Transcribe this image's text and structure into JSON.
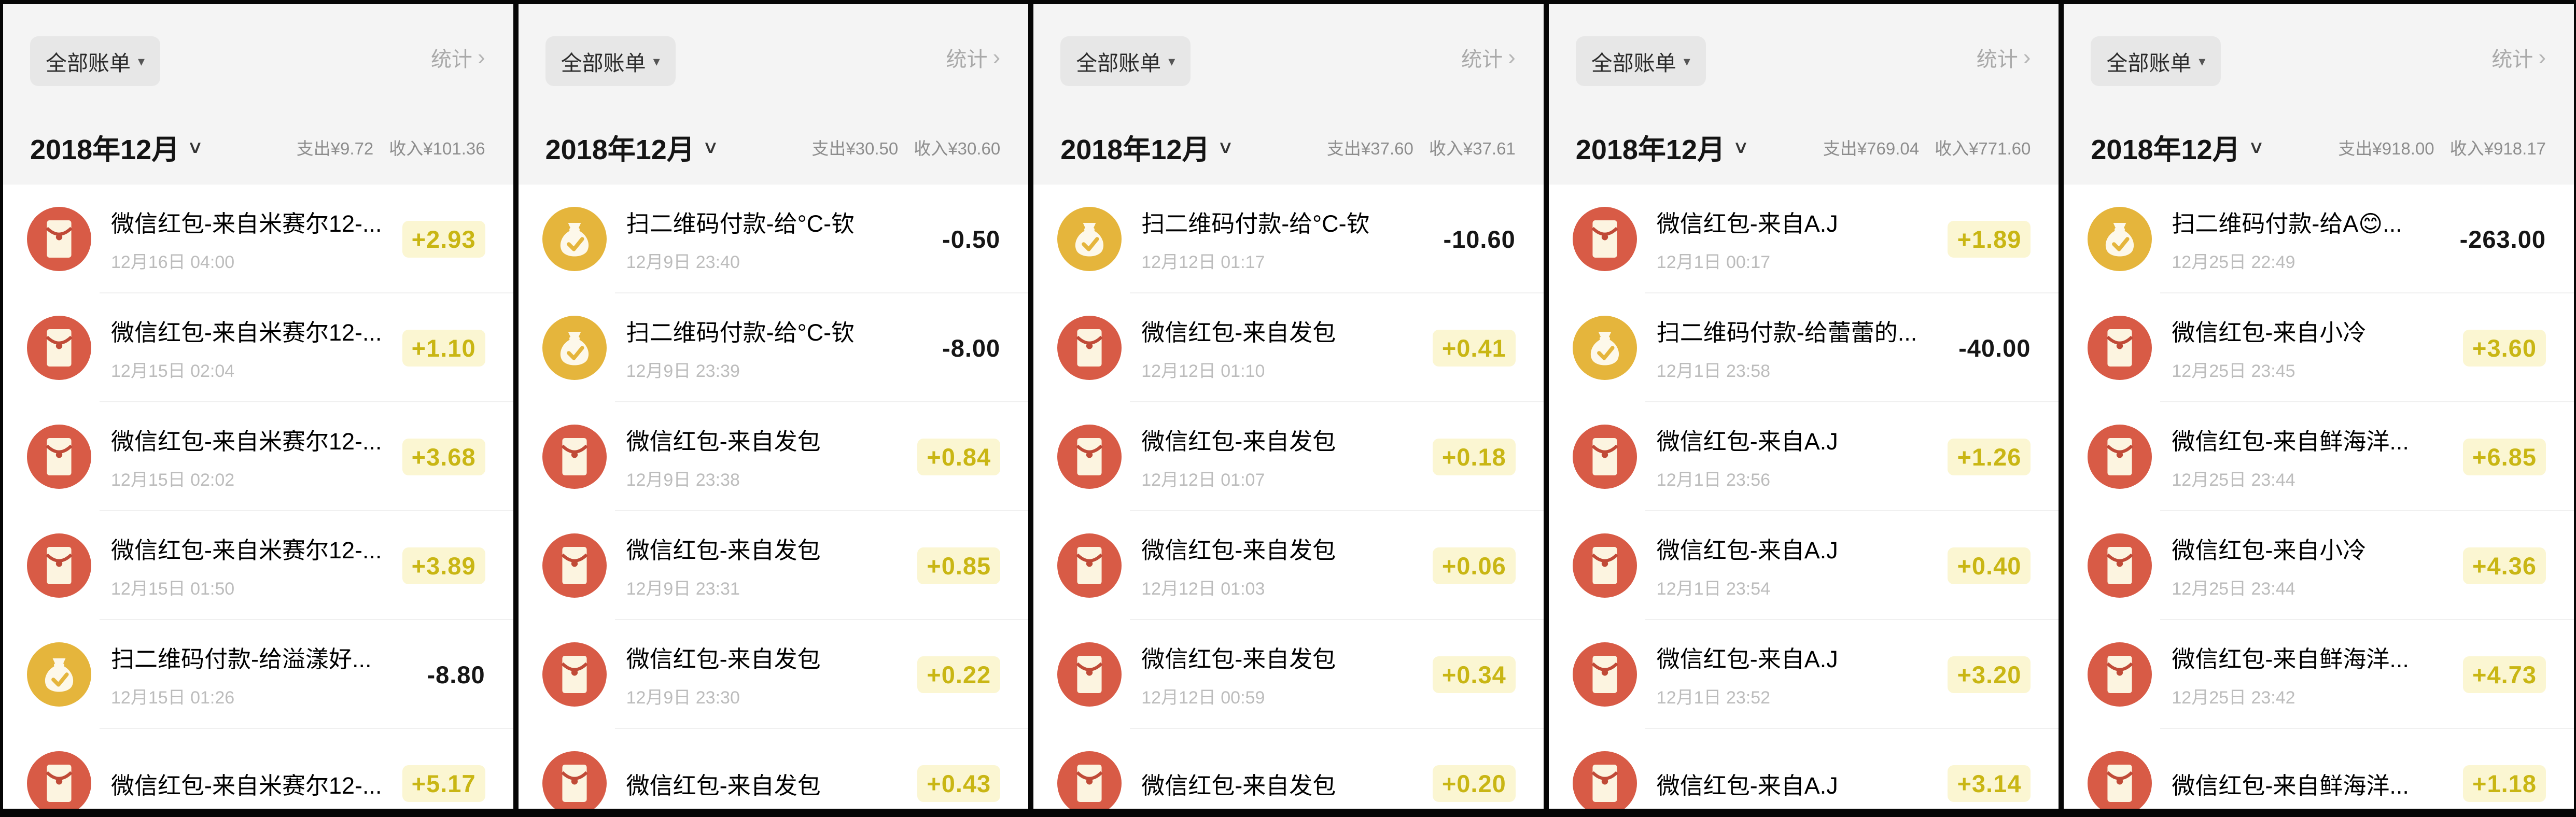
{
  "colors": {
    "income_text": "#c9b614",
    "income_highlight": "#fbf6d2",
    "expense_text": "#161616",
    "red_packet_circle": "#d85b46",
    "money_bag_circle": "#e5b53c",
    "header_bg": "#f4f4f4"
  },
  "header": {
    "filter_label": "全部账单",
    "filter_caret": "▾",
    "stats_label": "统计",
    "stats_chevron": "›",
    "month_caret": "∨"
  },
  "panels": [
    {
      "month": "2018年12月",
      "expense_total": "支出¥9.72",
      "income_total": "收入¥101.36",
      "rows": [
        {
          "icon": "red-packet",
          "title": "微信红包-来自米赛尔12-...",
          "date": "12月16日 04:00",
          "amount": "+2.93",
          "type": "income"
        },
        {
          "icon": "red-packet",
          "title": "微信红包-来自米赛尔12-...",
          "date": "12月15日 02:04",
          "amount": "+1.10",
          "type": "income"
        },
        {
          "icon": "red-packet",
          "title": "微信红包-来自米赛尔12-...",
          "date": "12月15日 02:02",
          "amount": "+3.68",
          "type": "income"
        },
        {
          "icon": "red-packet",
          "title": "微信红包-来自米赛尔12-...",
          "date": "12月15日 01:50",
          "amount": "+3.89",
          "type": "income"
        },
        {
          "icon": "money-bag",
          "title": "扫二维码付款-给溢漾好...",
          "date": "12月15日 01:26",
          "amount": "-8.80",
          "type": "expense"
        },
        {
          "icon": "red-packet",
          "title": "微信红包-来自米赛尔12-...",
          "date": "",
          "amount": "+5.17",
          "type": "income"
        }
      ]
    },
    {
      "month": "2018年12月",
      "expense_total": "支出¥30.50",
      "income_total": "收入¥30.60",
      "rows": [
        {
          "icon": "money-bag",
          "title": "扫二维码付款-给°C-钦",
          "date": "12月9日 23:40",
          "amount": "-0.50",
          "type": "expense"
        },
        {
          "icon": "money-bag",
          "title": "扫二维码付款-给°C-钦",
          "date": "12月9日 23:39",
          "amount": "-8.00",
          "type": "expense"
        },
        {
          "icon": "red-packet",
          "title": "微信红包-来自发包",
          "date": "12月9日 23:38",
          "amount": "+0.84",
          "type": "income"
        },
        {
          "icon": "red-packet",
          "title": "微信红包-来自发包",
          "date": "12月9日 23:31",
          "amount": "+0.85",
          "type": "income"
        },
        {
          "icon": "red-packet",
          "title": "微信红包-来自发包",
          "date": "12月9日 23:30",
          "amount": "+0.22",
          "type": "income"
        },
        {
          "icon": "red-packet",
          "title": "微信红包-来自发包",
          "date": "",
          "amount": "+0.43",
          "type": "income"
        }
      ]
    },
    {
      "month": "2018年12月",
      "expense_total": "支出¥37.60",
      "income_total": "收入¥37.61",
      "rows": [
        {
          "icon": "money-bag",
          "title": "扫二维码付款-给°C-钦",
          "date": "12月12日 01:17",
          "amount": "-10.60",
          "type": "expense"
        },
        {
          "icon": "red-packet",
          "title": "微信红包-来自发包",
          "date": "12月12日 01:10",
          "amount": "+0.41",
          "type": "income"
        },
        {
          "icon": "red-packet",
          "title": "微信红包-来自发包",
          "date": "12月12日 01:07",
          "amount": "+0.18",
          "type": "income"
        },
        {
          "icon": "red-packet",
          "title": "微信红包-来自发包",
          "date": "12月12日 01:03",
          "amount": "+0.06",
          "type": "income"
        },
        {
          "icon": "red-packet",
          "title": "微信红包-来自发包",
          "date": "12月12日 00:59",
          "amount": "+0.34",
          "type": "income"
        },
        {
          "icon": "red-packet",
          "title": "微信红包-来自发包",
          "date": "",
          "amount": "+0.20",
          "type": "income"
        }
      ]
    },
    {
      "month": "2018年12月",
      "expense_total": "支出¥769.04",
      "income_total": "收入¥771.60",
      "rows": [
        {
          "icon": "red-packet",
          "title": "微信红包-来自A.J",
          "date": "12月1日 00:17",
          "amount": "+1.89",
          "type": "income"
        },
        {
          "icon": "money-bag",
          "title": "扫二维码付款-给蕾蕾的...",
          "date": "12月1日 23:58",
          "amount": "-40.00",
          "type": "expense"
        },
        {
          "icon": "red-packet",
          "title": "微信红包-来自A.J",
          "date": "12月1日 23:56",
          "amount": "+1.26",
          "type": "income"
        },
        {
          "icon": "red-packet",
          "title": "微信红包-来自A.J",
          "date": "12月1日 23:54",
          "amount": "+0.40",
          "type": "income"
        },
        {
          "icon": "red-packet",
          "title": "微信红包-来自A.J",
          "date": "12月1日 23:52",
          "amount": "+3.20",
          "type": "income"
        },
        {
          "icon": "red-packet",
          "title": "微信红包-来自A.J",
          "date": "",
          "amount": "+3.14",
          "type": "income"
        }
      ]
    },
    {
      "month": "2018年12月",
      "expense_total": "支出¥918.00",
      "income_total": "收入¥918.17",
      "rows": [
        {
          "icon": "money-bag",
          "title": "扫二维码付款-给A😊...",
          "date": "12月25日 22:49",
          "amount": "-263.00",
          "type": "expense"
        },
        {
          "icon": "red-packet",
          "title": "微信红包-来自小冷",
          "date": "12月25日 23:45",
          "amount": "+3.60",
          "type": "income"
        },
        {
          "icon": "red-packet",
          "title": "微信红包-来自鲜海洋...",
          "date": "12月25日 23:44",
          "amount": "+6.85",
          "type": "income"
        },
        {
          "icon": "red-packet",
          "title": "微信红包-来自小冷",
          "date": "12月25日 23:44",
          "amount": "+4.36",
          "type": "income"
        },
        {
          "icon": "red-packet",
          "title": "微信红包-来自鲜海洋...",
          "date": "12月25日 23:42",
          "amount": "+4.73",
          "type": "income"
        },
        {
          "icon": "red-packet",
          "title": "微信红包-来自鲜海洋...",
          "date": "",
          "amount": "+1.18",
          "type": "income"
        }
      ]
    }
  ]
}
